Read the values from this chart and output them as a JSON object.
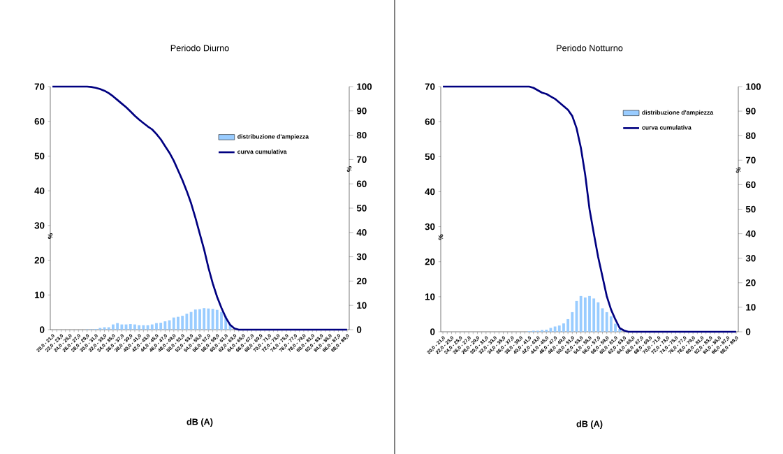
{
  "chart_data": [
    {
      "type": "bar",
      "title": "Periodo Diurno",
      "xlabel": "dB (A)",
      "ylabel": "%",
      "y2label": "%",
      "categories": [
        "20,0 - 21,0",
        null,
        "22,0 - 23,0",
        null,
        "24,0 - 25,0",
        null,
        "26,0 - 27,0",
        null,
        "28,0 - 29,0",
        null,
        "30,0 - 31,0",
        null,
        "32,0 - 33,0",
        null,
        "34,0 - 35,0",
        null,
        "36,0 - 37,0",
        null,
        "38,0 - 39,0",
        null,
        "40,0 - 41,0",
        null,
        "42,0 - 43,0",
        null,
        "44,0 - 45,0",
        null,
        "46,0 - 47,0",
        null,
        "48,0 - 49,0",
        null,
        "50,0 - 51,0",
        null,
        "52,0 - 53,0",
        null,
        "54,0 - 55,0",
        null,
        "56,0 - 57,0",
        null,
        "58,0 - 59,0",
        null,
        "60,0 - 61,0",
        null,
        "62,0 - 63,0",
        null,
        "64,0 - 65,0",
        null,
        "66,0 - 67,0",
        null,
        "68,0 - 69,0",
        null,
        "70,0 - 71,0",
        null,
        "72,0 - 73,0",
        null,
        "74,0 - 75,0",
        null,
        "76,0 - 77,0",
        null,
        "78,0 - 79,0",
        null,
        "80,0 - 81,0",
        null,
        "82,0 - 83,0",
        null,
        "84,0 - 85,0",
        null,
        "86,0 - 87,0",
        null,
        "88,0 - 89,0"
      ],
      "series": [
        {
          "name": "distribuzione d'ampiezza",
          "type": "bar",
          "color": "#99ccff",
          "values": [
            0,
            0,
            0,
            0,
            0,
            0,
            0,
            0,
            0.1,
            0.1,
            0.2,
            0.5,
            0.7,
            0.7,
            1.5,
            1.9,
            1.5,
            1.5,
            1.6,
            1.5,
            1.3,
            1.3,
            1.3,
            1.5,
            1.9,
            2.0,
            2.4,
            2.7,
            3.5,
            3.7,
            4.0,
            4.6,
            5.1,
            5.8,
            5.9,
            6.2,
            6.1,
            6.0,
            5.7,
            5.1,
            3.9,
            1.5,
            null,
            0.1,
            0,
            0,
            0,
            0,
            0,
            0,
            0,
            0,
            0,
            0,
            0,
            0,
            0,
            0,
            0,
            0,
            0,
            0,
            0,
            0,
            0,
            0,
            0,
            0,
            0
          ]
        },
        {
          "name": "curva cumulativa",
          "type": "line",
          "axis": "y2",
          "color": "#000080",
          "values": [
            100,
            100,
            100,
            100,
            100,
            100,
            100,
            100,
            100,
            99.8,
            99.5,
            99,
            98.3,
            97.3,
            96,
            94.5,
            93,
            91.5,
            89.8,
            88,
            86.4,
            85,
            83.6,
            82.4,
            80.5,
            78.3,
            75.5,
            72.8,
            69.5,
            65.5,
            61.5,
            57,
            52,
            46,
            39.5,
            33,
            25.5,
            19,
            13.5,
            9,
            5,
            2,
            0.5,
            0,
            0,
            0,
            0,
            0,
            0,
            0,
            0,
            0,
            0,
            0,
            0,
            0,
            0,
            0,
            0,
            0,
            0,
            0,
            0,
            0,
            0,
            0,
            0,
            0,
            0
          ]
        }
      ],
      "ylim": [
        0,
        70
      ],
      "yticks": [
        0,
        10,
        20,
        30,
        40,
        50,
        60,
        70
      ],
      "y2lim": [
        0,
        100
      ],
      "y2ticks": [
        0,
        10,
        20,
        30,
        40,
        50,
        60,
        70,
        80,
        90,
        100
      ],
      "legend": "right"
    },
    {
      "type": "bar",
      "title": "Periodo Notturno",
      "xlabel": "dB (A)",
      "ylabel": "%",
      "y2label": "%",
      "categories": [
        "20,0 - 21,0",
        null,
        "22,0 - 23,0",
        null,
        "24,0 - 25,0",
        null,
        "26,0 - 27,0",
        null,
        "28,0 - 29,0",
        null,
        "30,0 - 31,0",
        null,
        "32,0 - 33,0",
        null,
        "34,0 - 35,0",
        null,
        "36,0 - 37,0",
        null,
        "38,0 - 39,0",
        null,
        "40,0 - 41,0",
        null,
        "42,0 - 43,0",
        null,
        "44,0 - 45,0",
        null,
        "46,0 - 47,0",
        null,
        "48,0 - 49,0",
        null,
        "50,0 - 51,0",
        null,
        "52,0 - 53,0",
        null,
        "54,0 - 55,0",
        null,
        "56,0 - 57,0",
        null,
        "58,0 - 59,0",
        null,
        "60,0 - 61,0",
        null,
        "62,0 - 63,0",
        null,
        "64,0 - 65,0",
        null,
        "66,0 - 67,0",
        null,
        "68,0 - 69,0",
        null,
        "70,0 - 71,0",
        null,
        "72,0 - 73,0",
        null,
        "74,0 - 75,0",
        null,
        "76,0 - 77,0",
        null,
        "78,0 - 79,0",
        null,
        "80,0 - 81,0",
        null,
        "82,0 - 83,0",
        null,
        "84,0 - 85,0",
        null,
        "86,0 - 87,0",
        null,
        "88,0 - 89,0"
      ],
      "series": [
        {
          "name": "distribuzione d'ampiezza",
          "type": "bar",
          "color": "#99ccff",
          "values": [
            0,
            0,
            0,
            0,
            0,
            0,
            0,
            0,
            0,
            0,
            0,
            0,
            0,
            0,
            0,
            0,
            0,
            0,
            0,
            null,
            0.2,
            0.3,
            0.3,
            0.5,
            0.6,
            1.1,
            1.5,
            1.8,
            2.4,
            3.6,
            5.6,
            8.8,
            10.2,
            9.8,
            10.2,
            9.5,
            8.4,
            6.7,
            5.6,
            4.4,
            2.3,
            0.8,
            null,
            0,
            0,
            0,
            0,
            0,
            0,
            0,
            0,
            0,
            0,
            0,
            0,
            0,
            0,
            0,
            0,
            0,
            0,
            0,
            0,
            0,
            0,
            0,
            0,
            0,
            0
          ]
        },
        {
          "name": "curva cumulativa",
          "type": "line",
          "axis": "y2",
          "color": "#000080",
          "values": [
            100,
            100,
            100,
            100,
            100,
            100,
            100,
            100,
            100,
            100,
            100,
            100,
            100,
            100,
            100,
            100,
            100,
            100,
            100,
            100,
            100,
            99.5,
            98.5,
            97.5,
            97,
            96,
            95,
            93.5,
            92,
            90.5,
            88,
            83,
            75,
            64,
            50,
            40,
            30.5,
            22.5,
            14.5,
            9,
            5,
            1.5,
            0.5,
            0,
            0,
            0,
            0,
            0,
            0,
            0,
            0,
            0,
            0,
            0,
            0,
            0,
            0,
            0,
            0,
            0,
            0,
            0,
            0,
            0,
            0,
            0,
            0,
            0,
            0
          ]
        }
      ],
      "ylim": [
        0,
        70
      ],
      "yticks": [
        0,
        10,
        20,
        30,
        40,
        50,
        60,
        70
      ],
      "y2lim": [
        0,
        100
      ],
      "y2ticks": [
        0,
        10,
        20,
        30,
        40,
        50,
        60,
        70,
        80,
        90,
        100
      ],
      "legend": "top right"
    }
  ]
}
